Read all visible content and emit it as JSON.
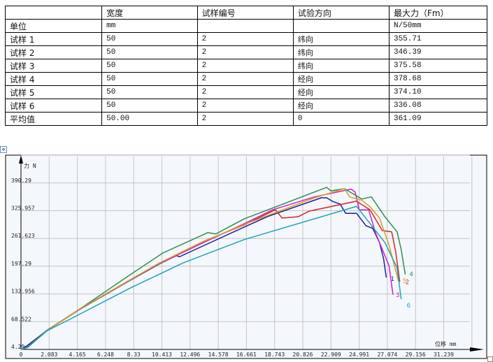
{
  "table": {
    "headers": [
      "",
      "宽度",
      "试样编号",
      "试验方向",
      "最大力（Fm）"
    ],
    "rows": [
      [
        "单位",
        "mm",
        "",
        "",
        "N/50mm"
      ],
      [
        "试样 1",
        "50",
        "2",
        "纬向",
        "355.71"
      ],
      [
        "试样 2",
        "50",
        "2",
        "纬向",
        "346.39"
      ],
      [
        "试样 3",
        "50",
        "2",
        "纬向",
        "375.58"
      ],
      [
        "试样 4",
        "50",
        "2",
        "经向",
        "378.68"
      ],
      [
        "试样 5",
        "50",
        "2",
        "经向",
        "374.10"
      ],
      [
        "试样 6",
        "50",
        "2",
        "经向",
        "336.08"
      ],
      [
        "平均值",
        "50.00",
        "2",
        "0",
        "361.09"
      ]
    ]
  },
  "chart_data": {
    "type": "line",
    "xlabel": "位移 mm",
    "ylabel": "力 N",
    "xlim": [
      0,
      33.3
    ],
    "ylim": [
      4.29,
      450
    ],
    "x_ticks": [
      "0",
      "2.083",
      "4.165",
      "6.248",
      "8.33",
      "10.413",
      "12.496",
      "14.578",
      "16.661",
      "18.743",
      "20.826",
      "22.909",
      "24.991",
      "27.074",
      "29.156",
      "31.239"
    ],
    "y_ticks": [
      "4.29",
      "68.522",
      "132.956",
      "197.29",
      "261.623",
      "325.957",
      "390.29"
    ],
    "grid": true,
    "series": [
      {
        "name": "1",
        "color": "#1c1ca0",
        "points": [
          [
            0,
            4
          ],
          [
            0.5,
            14
          ],
          [
            1.9,
            48
          ],
          [
            4.5,
            100
          ],
          [
            8.1,
            165
          ],
          [
            10.2,
            202
          ],
          [
            11.5,
            222
          ],
          [
            11.7,
            219
          ],
          [
            13.5,
            245
          ],
          [
            16.5,
            288
          ],
          [
            18.2,
            312
          ],
          [
            22.2,
            356
          ],
          [
            22.6,
            356
          ],
          [
            23,
            348
          ],
          [
            23.6,
            341
          ],
          [
            24,
            320
          ],
          [
            24.8,
            320
          ],
          [
            25.5,
            291
          ],
          [
            26,
            285
          ],
          [
            26.5,
            252
          ],
          [
            26.8,
            215
          ],
          [
            27,
            171
          ]
        ]
      },
      {
        "name": "2",
        "color": "#d02828",
        "points": [
          [
            0,
            4
          ],
          [
            0.5,
            10
          ],
          [
            1.9,
            48
          ],
          [
            4.5,
            101
          ],
          [
            8.1,
            166
          ],
          [
            10.2,
            204
          ],
          [
            13.5,
            255
          ],
          [
            16.5,
            293
          ],
          [
            18.8,
            328
          ],
          [
            19.3,
            309
          ],
          [
            20.5,
            312
          ],
          [
            21.3,
            325
          ],
          [
            24.8,
            348
          ],
          [
            25.8,
            328
          ],
          [
            26.7,
            280
          ],
          [
            27.4,
            277
          ],
          [
            27.7,
            230
          ],
          [
            28,
            161
          ]
        ]
      },
      {
        "name": "3",
        "color": "#d020c8",
        "points": [
          [
            0,
            4
          ],
          [
            0.5,
            11
          ],
          [
            1.9,
            48
          ],
          [
            4.5,
            101
          ],
          [
            8.1,
            166
          ],
          [
            10.2,
            203
          ],
          [
            13.5,
            252
          ],
          [
            16.5,
            296
          ],
          [
            18.6,
            328
          ],
          [
            21.7,
            358
          ],
          [
            24.4,
            376
          ],
          [
            24.7,
            369
          ],
          [
            25,
            328
          ],
          [
            25.7,
            328
          ],
          [
            26.2,
            275
          ],
          [
            27.2,
            199
          ],
          [
            27.5,
            131
          ]
        ]
      },
      {
        "name": "4",
        "color": "#2e8f50",
        "points": [
          [
            0,
            4
          ],
          [
            0.5,
            10
          ],
          [
            1.9,
            48
          ],
          [
            3.6,
            82
          ],
          [
            8.1,
            178
          ],
          [
            10.5,
            228
          ],
          [
            13.8,
            275
          ],
          [
            14.4,
            272
          ],
          [
            16.5,
            307
          ],
          [
            22.6,
            380
          ],
          [
            22.9,
            372
          ],
          [
            23.9,
            377
          ],
          [
            25.2,
            353
          ],
          [
            25.9,
            358
          ],
          [
            26.9,
            312
          ],
          [
            27.8,
            277
          ],
          [
            28.1,
            236
          ],
          [
            28.4,
            178
          ]
        ]
      },
      {
        "name": "5",
        "color": "#d4a020",
        "points": [
          [
            0,
            4
          ],
          [
            0.5,
            9
          ],
          [
            1.9,
            47
          ],
          [
            4.5,
            101
          ],
          [
            8.1,
            166
          ],
          [
            10.2,
            204
          ],
          [
            13.5,
            255
          ],
          [
            16.5,
            294
          ],
          [
            21.7,
            356
          ],
          [
            23.9,
            377
          ],
          [
            24.3,
            358
          ],
          [
            25.2,
            350
          ],
          [
            25.8,
            335
          ],
          [
            26.5,
            309
          ],
          [
            27.2,
            247
          ],
          [
            27.9,
            163
          ]
        ]
      },
      {
        "name": "6",
        "color": "#20a0b8",
        "points": [
          [
            0,
            4
          ],
          [
            0.5,
            9
          ],
          [
            1.9,
            47
          ],
          [
            3.6,
            74
          ],
          [
            8.1,
            147
          ],
          [
            12,
            205
          ],
          [
            16.5,
            259
          ],
          [
            24.8,
            336
          ],
          [
            25,
            328
          ],
          [
            26.9,
            252
          ],
          [
            27.8,
            194
          ],
          [
            28.1,
            121
          ]
        ]
      }
    ]
  }
}
